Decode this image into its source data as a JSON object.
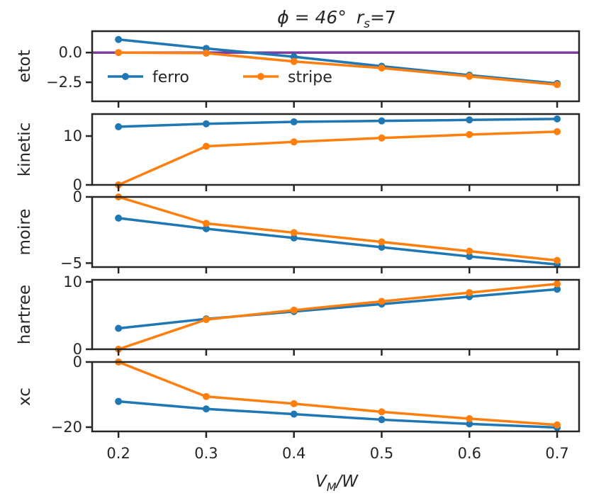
{
  "chart_data": {
    "type": "line",
    "title_main": "ϕ = 46°",
    "title_rs": "r",
    "title_rs_sub": "s",
    "title_rs_value": "=7",
    "xlabel": "V",
    "xlabel_sub": "M",
    "xlabel_suffix": "/W",
    "x": [
      0.2,
      0.3,
      0.4,
      0.5,
      0.6,
      0.7
    ],
    "xticks": [
      "0.2",
      "0.3",
      "0.4",
      "0.5",
      "0.6",
      "0.7"
    ],
    "xlim": [
      0.17,
      0.725
    ],
    "colors": {
      "ferro": "#1f77b4",
      "stripe": "#ff7f0e",
      "hline": "#7b3fa0"
    },
    "legend": [
      "ferro",
      "stripe"
    ],
    "legend_location": "lower-left (etot panel)",
    "panels": [
      {
        "ylabel": "etot",
        "ylim": [
          -4.1,
          1.8
        ],
        "yticks": [
          0.0,
          -2.5
        ],
        "ytick_labels": [
          "0.0",
          "−2.5"
        ],
        "hline": 0,
        "series": [
          {
            "name": "ferro",
            "values": [
              1.1,
              0.35,
              -0.35,
              -1.15,
              -1.9,
              -2.6
            ]
          },
          {
            "name": "stripe",
            "values": [
              0.0,
              -0.05,
              -0.75,
              -1.3,
              -2.0,
              -2.7
            ]
          }
        ]
      },
      {
        "ylabel": "kinetic",
        "ylim": [
          0,
          14.5
        ],
        "yticks": [
          10,
          0
        ],
        "ytick_labels": [
          "10",
          "0"
        ],
        "series": [
          {
            "name": "ferro",
            "values": [
              11.9,
              12.5,
              12.9,
              13.1,
              13.3,
              13.5
            ]
          },
          {
            "name": "stripe",
            "values": [
              0.0,
              7.9,
              8.8,
              9.6,
              10.3,
              10.9
            ]
          }
        ]
      },
      {
        "ylabel": "moire",
        "ylim": [
          -5.3,
          0
        ],
        "yticks": [
          0,
          -5
        ],
        "ytick_labels": [
          "0",
          "−5"
        ],
        "series": [
          {
            "name": "ferro",
            "values": [
              -1.6,
              -2.4,
              -3.1,
              -3.8,
              -4.5,
              -5.1
            ]
          },
          {
            "name": "stripe",
            "values": [
              0.0,
              -2.0,
              -2.7,
              -3.4,
              -4.1,
              -4.8
            ]
          }
        ]
      },
      {
        "ylabel": "hartree",
        "ylim": [
          0,
          10.3
        ],
        "yticks": [
          10,
          0
        ],
        "ytick_labels": [
          "10",
          "0"
        ],
        "series": [
          {
            "name": "ferro",
            "values": [
              3.1,
              4.5,
              5.6,
              6.7,
              7.8,
              8.9
            ]
          },
          {
            "name": "stripe",
            "values": [
              0.0,
              4.4,
              5.8,
              7.1,
              8.4,
              9.7
            ]
          }
        ]
      },
      {
        "ylabel": "xc",
        "ylim": [
          -21.3,
          0
        ],
        "yticks": [
          0,
          -20
        ],
        "ytick_labels": [
          "0",
          "−20"
        ],
        "series": [
          {
            "name": "ferro",
            "values": [
              -12.1,
              -14.4,
              -16.0,
              -17.7,
              -19.0,
              -20.1
            ]
          },
          {
            "name": "stripe",
            "values": [
              0.0,
              -10.6,
              -12.8,
              -15.3,
              -17.4,
              -19.3
            ]
          }
        ]
      }
    ]
  }
}
